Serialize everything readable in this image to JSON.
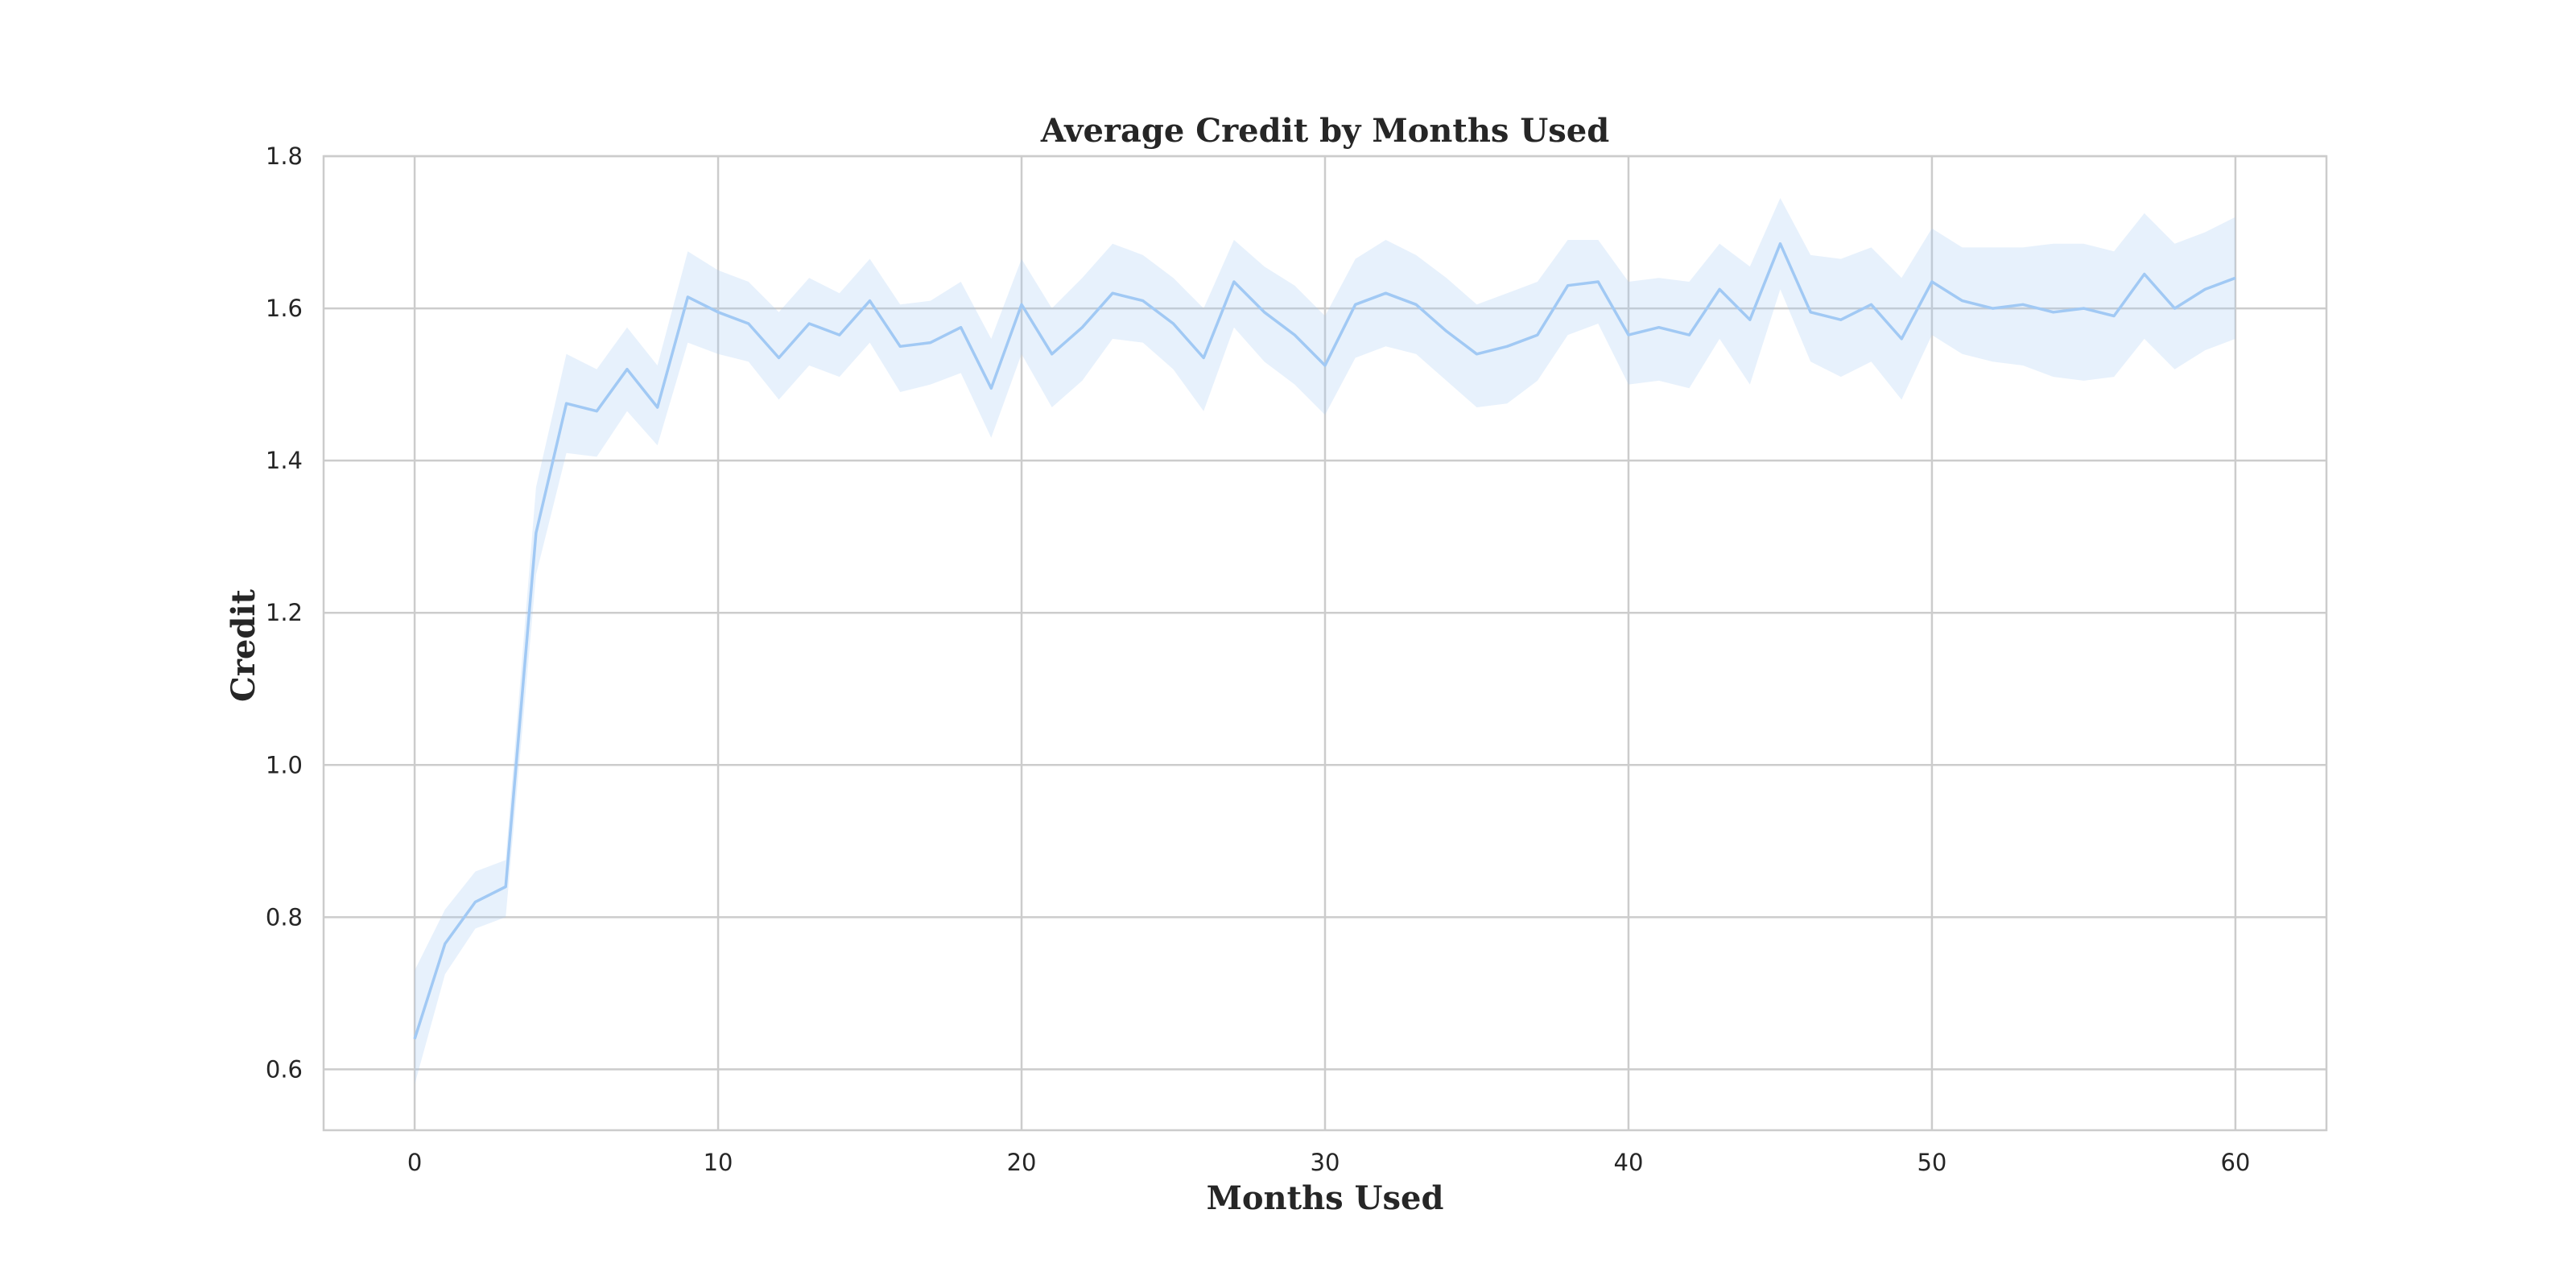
{
  "chart_data": {
    "type": "line",
    "title": "Average Credit by Months Used",
    "xlabel": "Months Used",
    "ylabel": "Credit",
    "xlim": [
      -3,
      63
    ],
    "ylim": [
      0.52,
      1.8
    ],
    "xticks": [
      0,
      10,
      20,
      30,
      40,
      50,
      60
    ],
    "yticks": [
      0.6,
      0.8,
      1.0,
      1.2,
      1.4,
      1.6,
      1.8
    ],
    "grid": true,
    "legend": "none",
    "colors": {
      "line": "#a1c9f4",
      "band": "#a1c9f4",
      "grid": "#cccccc",
      "text": "#262626"
    },
    "series": [
      {
        "x": [
          0,
          1,
          2,
          3,
          4,
          5,
          6,
          7,
          8,
          9,
          10,
          11,
          12,
          13,
          14,
          15,
          16,
          17,
          18,
          19,
          20,
          21,
          22,
          23,
          24,
          25,
          26,
          27,
          28,
          29,
          30,
          31,
          32,
          33,
          34,
          35,
          36,
          37,
          38,
          39,
          40,
          41,
          42,
          43,
          44,
          45,
          46,
          47,
          48,
          49,
          50,
          51,
          52,
          53,
          54,
          55,
          56,
          57,
          58,
          59,
          60
        ],
        "y": [
          0.64,
          0.765,
          0.82,
          0.84,
          1.305,
          1.475,
          1.465,
          1.52,
          1.47,
          1.615,
          1.595,
          1.58,
          1.535,
          1.58,
          1.565,
          1.61,
          1.55,
          1.555,
          1.575,
          1.495,
          1.605,
          1.54,
          1.575,
          1.62,
          1.61,
          1.58,
          1.535,
          1.635,
          1.595,
          1.565,
          1.525,
          1.605,
          1.62,
          1.605,
          1.57,
          1.54,
          1.55,
          1.565,
          1.63,
          1.635,
          1.565,
          1.575,
          1.565,
          1.625,
          1.585,
          1.685,
          1.595,
          1.585,
          1.605,
          1.56,
          1.635,
          1.61,
          1.6,
          1.605,
          1.595,
          1.6,
          1.59,
          1.645,
          1.6,
          1.625,
          1.64
        ],
        "ci_lower": [
          0.58,
          0.725,
          0.785,
          0.8,
          1.25,
          1.41,
          1.405,
          1.465,
          1.42,
          1.555,
          1.54,
          1.53,
          1.48,
          1.525,
          1.51,
          1.555,
          1.49,
          1.5,
          1.515,
          1.43,
          1.54,
          1.47,
          1.505,
          1.56,
          1.555,
          1.52,
          1.465,
          1.575,
          1.53,
          1.5,
          1.46,
          1.535,
          1.55,
          1.54,
          1.505,
          1.47,
          1.475,
          1.505,
          1.565,
          1.58,
          1.5,
          1.505,
          1.495,
          1.56,
          1.5,
          1.625,
          1.53,
          1.51,
          1.53,
          1.48,
          1.565,
          1.54,
          1.53,
          1.525,
          1.51,
          1.505,
          1.51,
          1.56,
          1.52,
          1.545,
          1.56
        ],
        "ci_upper": [
          0.73,
          0.81,
          0.86,
          0.875,
          1.365,
          1.54,
          1.52,
          1.575,
          1.525,
          1.675,
          1.65,
          1.635,
          1.595,
          1.64,
          1.62,
          1.665,
          1.605,
          1.61,
          1.635,
          1.56,
          1.665,
          1.6,
          1.64,
          1.685,
          1.67,
          1.64,
          1.6,
          1.69,
          1.655,
          1.63,
          1.59,
          1.665,
          1.69,
          1.67,
          1.64,
          1.605,
          1.62,
          1.635,
          1.69,
          1.69,
          1.635,
          1.64,
          1.635,
          1.685,
          1.655,
          1.745,
          1.67,
          1.665,
          1.68,
          1.64,
          1.705,
          1.68,
          1.68,
          1.68,
          1.685,
          1.685,
          1.675,
          1.725,
          1.685,
          1.7,
          1.72
        ]
      }
    ]
  }
}
